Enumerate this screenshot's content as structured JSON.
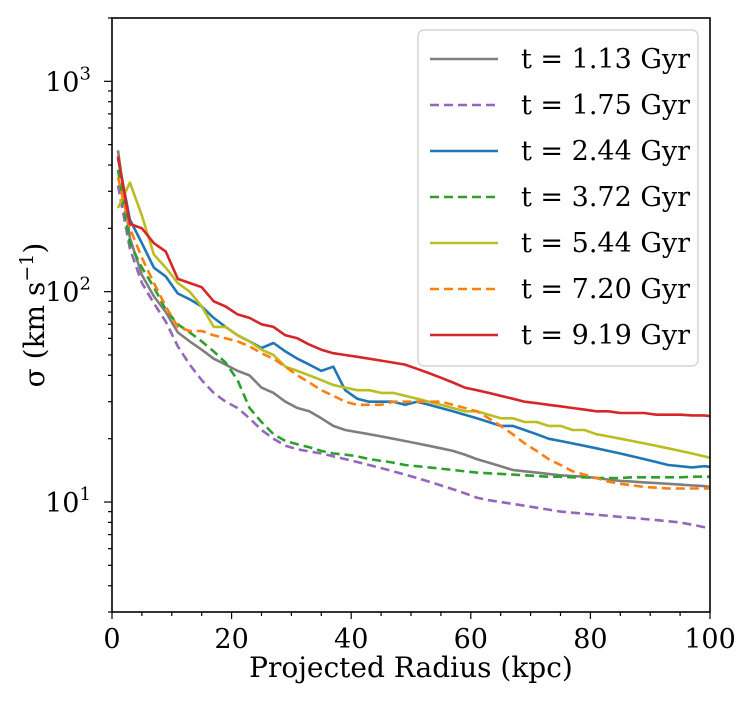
{
  "chart_data": {
    "type": "line",
    "title": "",
    "xlabel": "Projected Radius (kpc)",
    "ylabel": "σ (km s⁻¹)",
    "ylabel_main": "σ (km s",
    "ylabel_exp": "−1",
    "ylabel_close": ")",
    "xscale": "linear",
    "yscale": "log",
    "xlim": [
      0,
      100
    ],
    "ylim": [
      3,
      2000
    ],
    "grid": false,
    "legend_position": "top-right",
    "x_ticks": [
      {
        "value": 0,
        "label": "0"
      },
      {
        "value": 20,
        "label": "20"
      },
      {
        "value": 40,
        "label": "40"
      },
      {
        "value": 60,
        "label": "60"
      },
      {
        "value": 80,
        "label": "80"
      },
      {
        "value": 100,
        "label": "100"
      }
    ],
    "y_ticks": [
      {
        "value": 10,
        "base": "10",
        "exp": "1"
      },
      {
        "value": 100,
        "base": "10",
        "exp": "2"
      },
      {
        "value": 1000,
        "base": "10",
        "exp": "3"
      }
    ],
    "series": [
      {
        "name": "t = 1.13 Gyr",
        "color": "#7f7f7f",
        "dashed": false,
        "x": [
          1,
          3,
          5,
          7,
          9,
          11,
          13,
          15,
          17,
          19,
          21,
          23,
          25,
          27,
          29,
          31,
          33,
          35,
          37,
          39,
          41,
          43,
          45,
          47,
          49,
          51,
          53,
          55,
          57,
          59,
          61,
          63,
          65,
          67,
          69,
          71,
          73,
          75,
          77,
          79,
          81,
          83,
          85,
          87,
          89,
          91,
          93,
          95,
          97,
          99,
          100
        ],
        "y": [
          470,
          180,
          120,
          95,
          80,
          64,
          58,
          53,
          48,
          45,
          42,
          40,
          35,
          33,
          30,
          28,
          27,
          25,
          23,
          22,
          21.5,
          21,
          20.5,
          20,
          19.5,
          19,
          18.5,
          18,
          17.5,
          16.8,
          16,
          15.4,
          14.8,
          14.2,
          14,
          13.8,
          13.6,
          13.4,
          13.3,
          13.2,
          13,
          12.8,
          12.6,
          12.5,
          12.4,
          12.3,
          12.2,
          12.1,
          12,
          11.9,
          11.8
        ]
      },
      {
        "name": "t = 1.75 Gyr",
        "color": "#9467bd",
        "dashed": true,
        "x": [
          1,
          3,
          5,
          7,
          9,
          11,
          13,
          15,
          17,
          19,
          21,
          23,
          25,
          27,
          29,
          31,
          33,
          35,
          37,
          39,
          41,
          43,
          45,
          47,
          49,
          51,
          53,
          55,
          57,
          59,
          61,
          63,
          65,
          67,
          69,
          71,
          73,
          75,
          77,
          79,
          81,
          83,
          85,
          87,
          89,
          91,
          93,
          95,
          97,
          99,
          100
        ],
        "y": [
          320,
          160,
          110,
          88,
          72,
          55,
          45,
          38,
          33,
          30,
          28,
          25,
          22,
          20,
          18.5,
          17.8,
          17.4,
          17,
          16.5,
          16,
          15.5,
          15,
          14.5,
          14,
          13.5,
          13,
          12.5,
          12,
          11.5,
          11,
          10.5,
          10.2,
          10,
          9.8,
          9.6,
          9.4,
          9.2,
          9,
          8.9,
          8.8,
          8.7,
          8.6,
          8.5,
          8.4,
          8.3,
          8.2,
          8.1,
          8,
          7.8,
          7.6,
          7.5
        ]
      },
      {
        "name": "t = 2.44 Gyr",
        "color": "#1f77b4",
        "dashed": false,
        "x": [
          1,
          3,
          5,
          7,
          9,
          11,
          13,
          15,
          17,
          19,
          21,
          23,
          25,
          27,
          29,
          31,
          33,
          35,
          37,
          39,
          41,
          43,
          45,
          47,
          49,
          51,
          53,
          55,
          57,
          59,
          61,
          63,
          65,
          67,
          69,
          71,
          73,
          75,
          77,
          79,
          81,
          83,
          85,
          87,
          89,
          91,
          93,
          95,
          97,
          99,
          100
        ],
        "y": [
          430,
          220,
          170,
          130,
          118,
          98,
          92,
          85,
          75,
          68,
          62,
          58,
          54,
          57,
          52,
          48,
          45,
          42,
          44,
          34,
          31,
          30,
          30,
          30,
          29,
          30,
          29,
          28,
          27,
          26,
          25,
          24,
          23,
          23,
          22,
          21,
          20,
          19.5,
          19,
          18.5,
          18,
          17.5,
          17,
          16.5,
          16,
          15.5,
          15,
          14.8,
          14.6,
          14.8,
          14.7
        ]
      },
      {
        "name": "t = 3.72 Gyr",
        "color": "#2ca02c",
        "dashed": true,
        "x": [
          1,
          3,
          5,
          7,
          9,
          11,
          13,
          15,
          17,
          19,
          21,
          23,
          25,
          27,
          29,
          31,
          33,
          35,
          37,
          39,
          41,
          43,
          45,
          47,
          49,
          51,
          53,
          55,
          57,
          59,
          61,
          63,
          65,
          67,
          69,
          71,
          73,
          75,
          77,
          79,
          81,
          83,
          85,
          87,
          89,
          91,
          93,
          95,
          97,
          99,
          100
        ],
        "y": [
          380,
          170,
          130,
          105,
          82,
          70,
          64,
          58,
          52,
          46,
          38,
          28,
          24,
          21,
          19.5,
          18.8,
          18.2,
          17.5,
          17,
          16.8,
          16.5,
          16,
          15.7,
          15.4,
          15,
          14.8,
          14.6,
          14.4,
          14.2,
          14,
          13.8,
          13.7,
          13.6,
          13.5,
          13.4,
          13.3,
          13.2,
          13.2,
          13.1,
          13.1,
          13,
          13,
          13,
          13.1,
          13.1,
          13.1,
          13.1,
          13.1,
          13.2,
          13.2,
          13.2
        ]
      },
      {
        "name": "t = 5.44 Gyr",
        "color": "#bcbd22",
        "dashed": false,
        "x": [
          1,
          3,
          5,
          7,
          9,
          11,
          13,
          15,
          17,
          19,
          21,
          23,
          25,
          27,
          29,
          31,
          33,
          35,
          37,
          39,
          41,
          43,
          45,
          47,
          49,
          51,
          53,
          55,
          57,
          59,
          61,
          63,
          65,
          67,
          69,
          71,
          73,
          75,
          77,
          79,
          81,
          83,
          85,
          87,
          89,
          91,
          93,
          95,
          97,
          99,
          100
        ],
        "y": [
          250,
          330,
          230,
          150,
          130,
          110,
          100,
          85,
          68,
          68,
          62,
          58,
          53,
          50,
          44,
          42,
          40,
          38,
          36,
          35,
          34,
          34,
          33,
          33,
          32,
          31,
          30,
          29,
          28,
          27,
          27,
          26,
          25,
          25,
          24,
          24,
          23,
          23,
          22,
          22,
          21,
          20.5,
          20,
          19.5,
          19,
          18.5,
          18,
          17.5,
          17,
          16.5,
          16.2
        ]
      },
      {
        "name": "t = 7.20 Gyr",
        "color": "#ff7f0e",
        "dashed": true,
        "x": [
          1,
          3,
          5,
          7,
          9,
          11,
          13,
          15,
          17,
          19,
          21,
          23,
          25,
          27,
          29,
          31,
          33,
          35,
          37,
          39,
          41,
          43,
          45,
          47,
          49,
          51,
          53,
          55,
          57,
          59,
          61,
          63,
          65,
          67,
          69,
          71,
          73,
          75,
          77,
          79,
          81,
          83,
          85,
          87,
          89,
          91,
          93,
          95,
          97,
          99,
          100
        ],
        "y": [
          350,
          200,
          145,
          110,
          85,
          68,
          65,
          65,
          62,
          60,
          58,
          55,
          51,
          48,
          44,
          40,
          37,
          34,
          32,
          30,
          29,
          29,
          29,
          30,
          30,
          30,
          30,
          30,
          29,
          28,
          27,
          25,
          23,
          21,
          19,
          17.5,
          16,
          15,
          14,
          13.5,
          13,
          12.5,
          12.2,
          12,
          11.8,
          11.7,
          11.6,
          11.6,
          11.6,
          11.6,
          11.6
        ]
      },
      {
        "name": "t = 9.19 Gyr",
        "color": "#d62728",
        "dashed": false,
        "x": [
          1,
          3,
          5,
          7,
          9,
          11,
          13,
          15,
          17,
          19,
          21,
          23,
          25,
          27,
          29,
          31,
          33,
          35,
          37,
          39,
          41,
          43,
          45,
          47,
          49,
          51,
          53,
          55,
          57,
          59,
          61,
          63,
          65,
          67,
          69,
          71,
          73,
          75,
          77,
          79,
          81,
          83,
          85,
          87,
          89,
          91,
          93,
          95,
          97,
          99,
          100
        ],
        "y": [
          440,
          210,
          200,
          170,
          155,
          115,
          110,
          105,
          90,
          85,
          78,
          75,
          70,
          68,
          62,
          60,
          56,
          53,
          51,
          50,
          49,
          48,
          47,
          46,
          45,
          43,
          41,
          39,
          37,
          35,
          34,
          33,
          32,
          31,
          30,
          29.5,
          29,
          28.5,
          28,
          27.5,
          27,
          27,
          26.5,
          26.5,
          26.5,
          26,
          26,
          26,
          25.8,
          25.8,
          25.6
        ]
      }
    ]
  }
}
